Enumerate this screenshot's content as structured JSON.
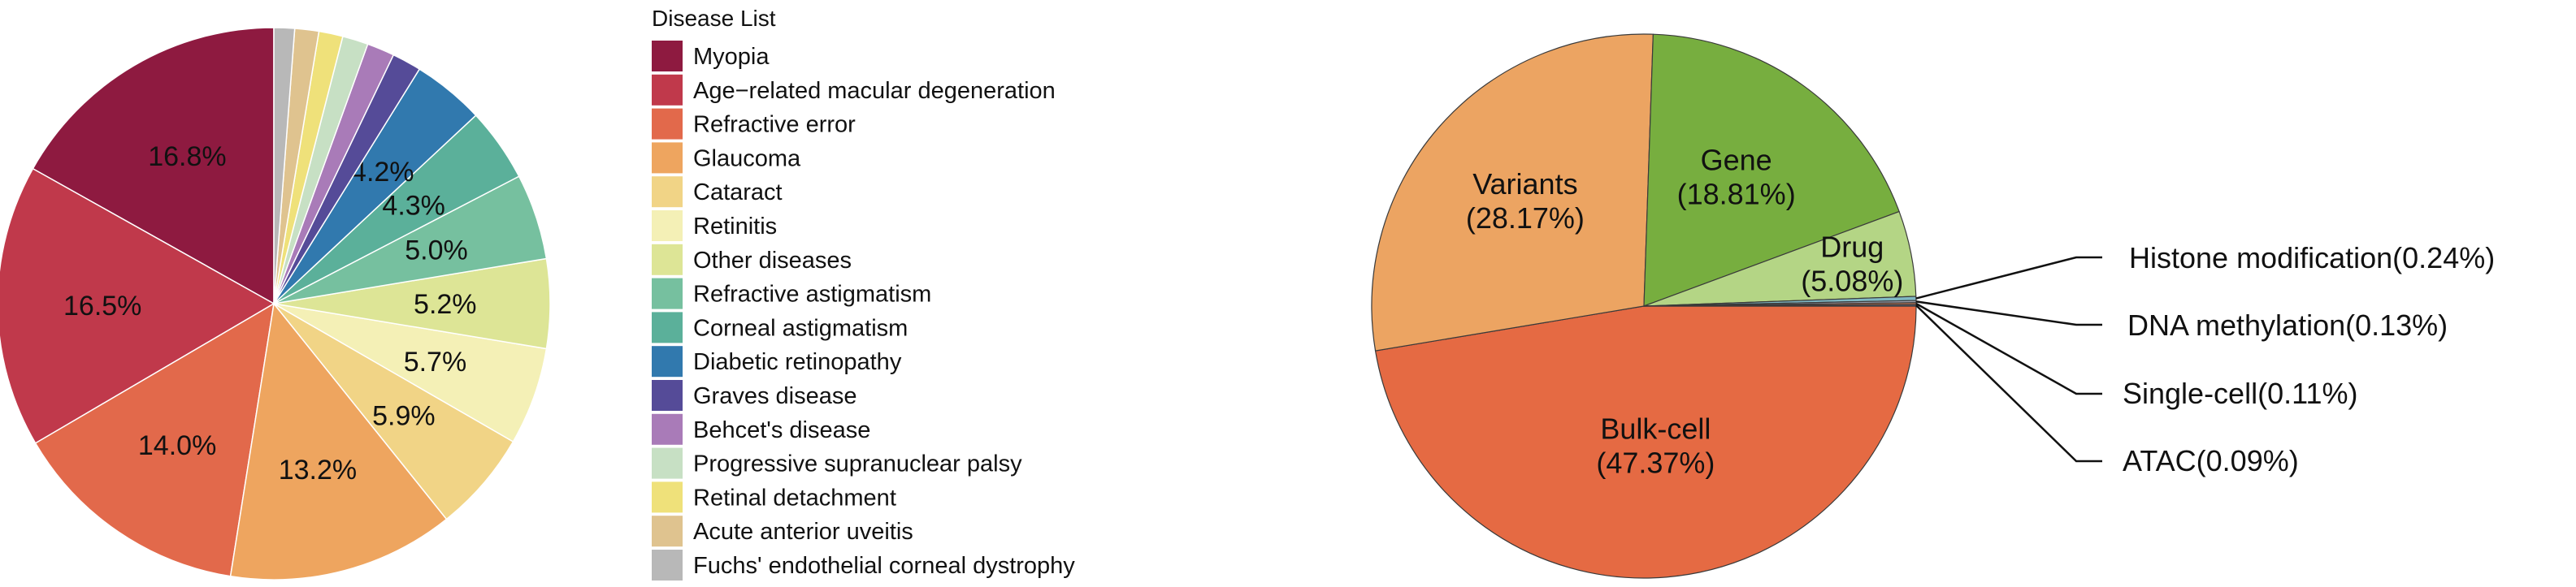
{
  "chart_data": [
    {
      "type": "pie",
      "legend_title": "Disease List",
      "legend_position": "right",
      "categories": [
        "Myopia",
        "Age−related macular degeneration",
        "Refractive error",
        "Glaucoma",
        "Cataract",
        "Retinitis",
        "Other diseases",
        "Refractive astigmatism",
        "Corneal astigmatism",
        "Diabetic retinopathy",
        "Graves disease",
        "Behcet's disease",
        "Progressive supranuclear palsy",
        "Retinal detachment",
        "Acute anterior uveitis",
        "Fuchs' endothelial corneal dystrophy"
      ],
      "values": [
        16.8,
        16.5,
        14.0,
        13.2,
        5.9,
        5.7,
        5.2,
        5.0,
        4.3,
        4.2,
        1.7,
        1.6,
        1.5,
        1.4,
        1.4,
        1.2
      ],
      "data_labels": [
        "16.8%",
        "16.5%",
        "14.0%",
        "13.2%",
        "5.9%",
        "5.7%",
        "5.2%",
        "5.0%",
        "4.3%",
        "4.2%",
        "",
        "",
        "",
        "",
        "",
        ""
      ],
      "colors": [
        "#8e1a40",
        "#c0394b",
        "#e2694b",
        "#eea55f",
        "#f1d486",
        "#f4f0b6",
        "#dde596",
        "#76c09f",
        "#5bb09a",
        "#3179ae",
        "#554b98",
        "#a97bb8",
        "#c7e0c4",
        "#efe17a",
        "#dfc38f",
        "#b8b8b8"
      ]
    },
    {
      "type": "pie",
      "categories": [
        "Bulk-cell",
        "Variants",
        "Gene",
        "Drug",
        "Histone modification",
        "DNA methylation",
        "Single-cell",
        "ATAC"
      ],
      "values": [
        47.37,
        28.17,
        18.81,
        5.08,
        0.24,
        0.13,
        0.11,
        0.09
      ],
      "inside_labels": [
        [
          "Bulk-cell",
          "(47.37%)"
        ],
        [
          "Variants",
          "(28.17%)"
        ],
        [
          "Gene",
          "(18.81%)"
        ],
        [
          "Drug",
          "(5.08%)"
        ]
      ],
      "callout_labels": [
        "Histone modification(0.24%)",
        "DNA methylation(0.13%)",
        "Single-cell(0.11%)",
        "ATAC(0.09%)"
      ],
      "colors": [
        "#e56a43",
        "#eca462",
        "#77ae3f",
        "#b4d585",
        "#7fb8c4",
        "#9aa0ad",
        "#d07a55",
        "#5f6e88"
      ]
    }
  ]
}
